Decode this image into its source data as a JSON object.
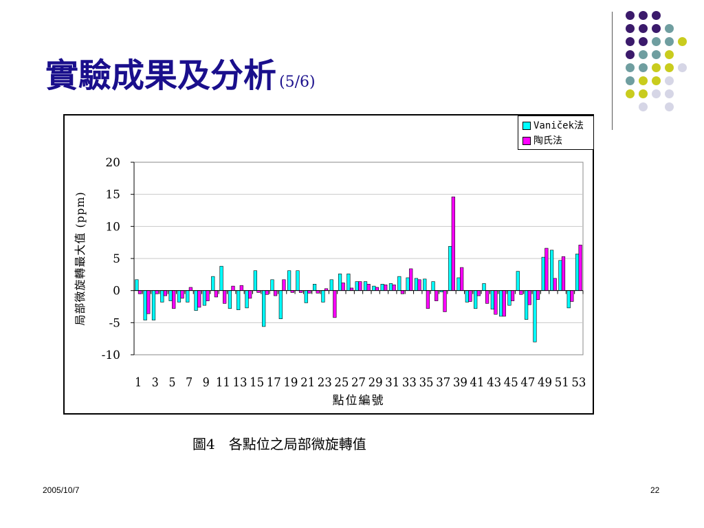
{
  "slide": {
    "title": "實驗成果及分析",
    "title_sub": "(5/6)",
    "caption": "圖4　各點位之局部微旋轉值",
    "footer_date": "2005/10/7",
    "page_number": "22",
    "dot_colors": [
      "#3b1a6b",
      "#6f9ea0",
      "#c9cc1e",
      "#d6d6e6"
    ]
  },
  "chart_data": {
    "type": "bar",
    "title": "",
    "xlabel": "點位編號",
    "ylabel": "局部微旋轉最大值 (ppm)",
    "ylim": [
      -10,
      20
    ],
    "yticks": [
      20,
      15,
      10,
      5,
      0,
      -5,
      -10
    ],
    "grid": true,
    "legend": "top-right",
    "categories": [
      1,
      2,
      3,
      4,
      5,
      6,
      7,
      8,
      9,
      10,
      11,
      12,
      13,
      14,
      15,
      16,
      17,
      18,
      19,
      20,
      21,
      22,
      23,
      24,
      25,
      26,
      27,
      28,
      29,
      30,
      31,
      32,
      33,
      34,
      35,
      36,
      37,
      38,
      39,
      40,
      41,
      42,
      43,
      44,
      45,
      46,
      47,
      48,
      49,
      50,
      51,
      52,
      53
    ],
    "xtick_labels": [
      "1",
      "3",
      "5",
      "7",
      "9",
      "11",
      "13",
      "15",
      "17",
      "19",
      "21",
      "23",
      "25",
      "27",
      "29",
      "31",
      "33",
      "35",
      "37",
      "39",
      "41",
      "43",
      "45",
      "47",
      "49",
      "51",
      "53"
    ],
    "series": [
      {
        "name": "Vaniček法",
        "color": "#00ffff",
        "values": [
          1.7,
          -4.6,
          -4.6,
          -1.8,
          -1.6,
          -1.8,
          -1.8,
          -3.1,
          -2.3,
          2.2,
          3.8,
          -2.8,
          -3.0,
          -2.7,
          3.1,
          -5.6,
          1.7,
          -4.4,
          3.1,
          3.1,
          -1.9,
          1.0,
          -1.8,
          1.7,
          2.6,
          2.6,
          1.4,
          1.4,
          0.7,
          1.0,
          1.1,
          2.2,
          2.0,
          1.9,
          1.8,
          1.4,
          -0.2,
          6.9,
          2.0,
          -1.8,
          -2.8,
          1.1,
          -2.9,
          -4.0,
          -2.3,
          3.0,
          -4.5,
          -8.0,
          5.2,
          6.3,
          4.7,
          -2.7,
          5.7
        ]
      },
      {
        "name": "陶氏法",
        "color": "#ff00ff",
        "values": [
          -0.5,
          -3.6,
          -0.5,
          -0.8,
          -2.8,
          -1.2,
          0.5,
          -2.6,
          -1.6,
          -1.0,
          -2.0,
          0.7,
          0.8,
          -1.2,
          -0.3,
          -0.6,
          -0.8,
          1.7,
          -0.3,
          -0.3,
          -0.4,
          -0.4,
          0.3,
          -4.2,
          1.2,
          0.4,
          1.4,
          1.0,
          0.5,
          0.9,
          0.9,
          -0.5,
          3.4,
          1.7,
          -2.8,
          -1.6,
          -3.3,
          14.6,
          3.6,
          -1.7,
          -0.8,
          -2.0,
          -3.7,
          -4.0,
          -1.6,
          -0.6,
          -2.2,
          -1.4,
          6.6,
          1.9,
          5.3,
          -1.7,
          7.1
        ]
      }
    ]
  }
}
